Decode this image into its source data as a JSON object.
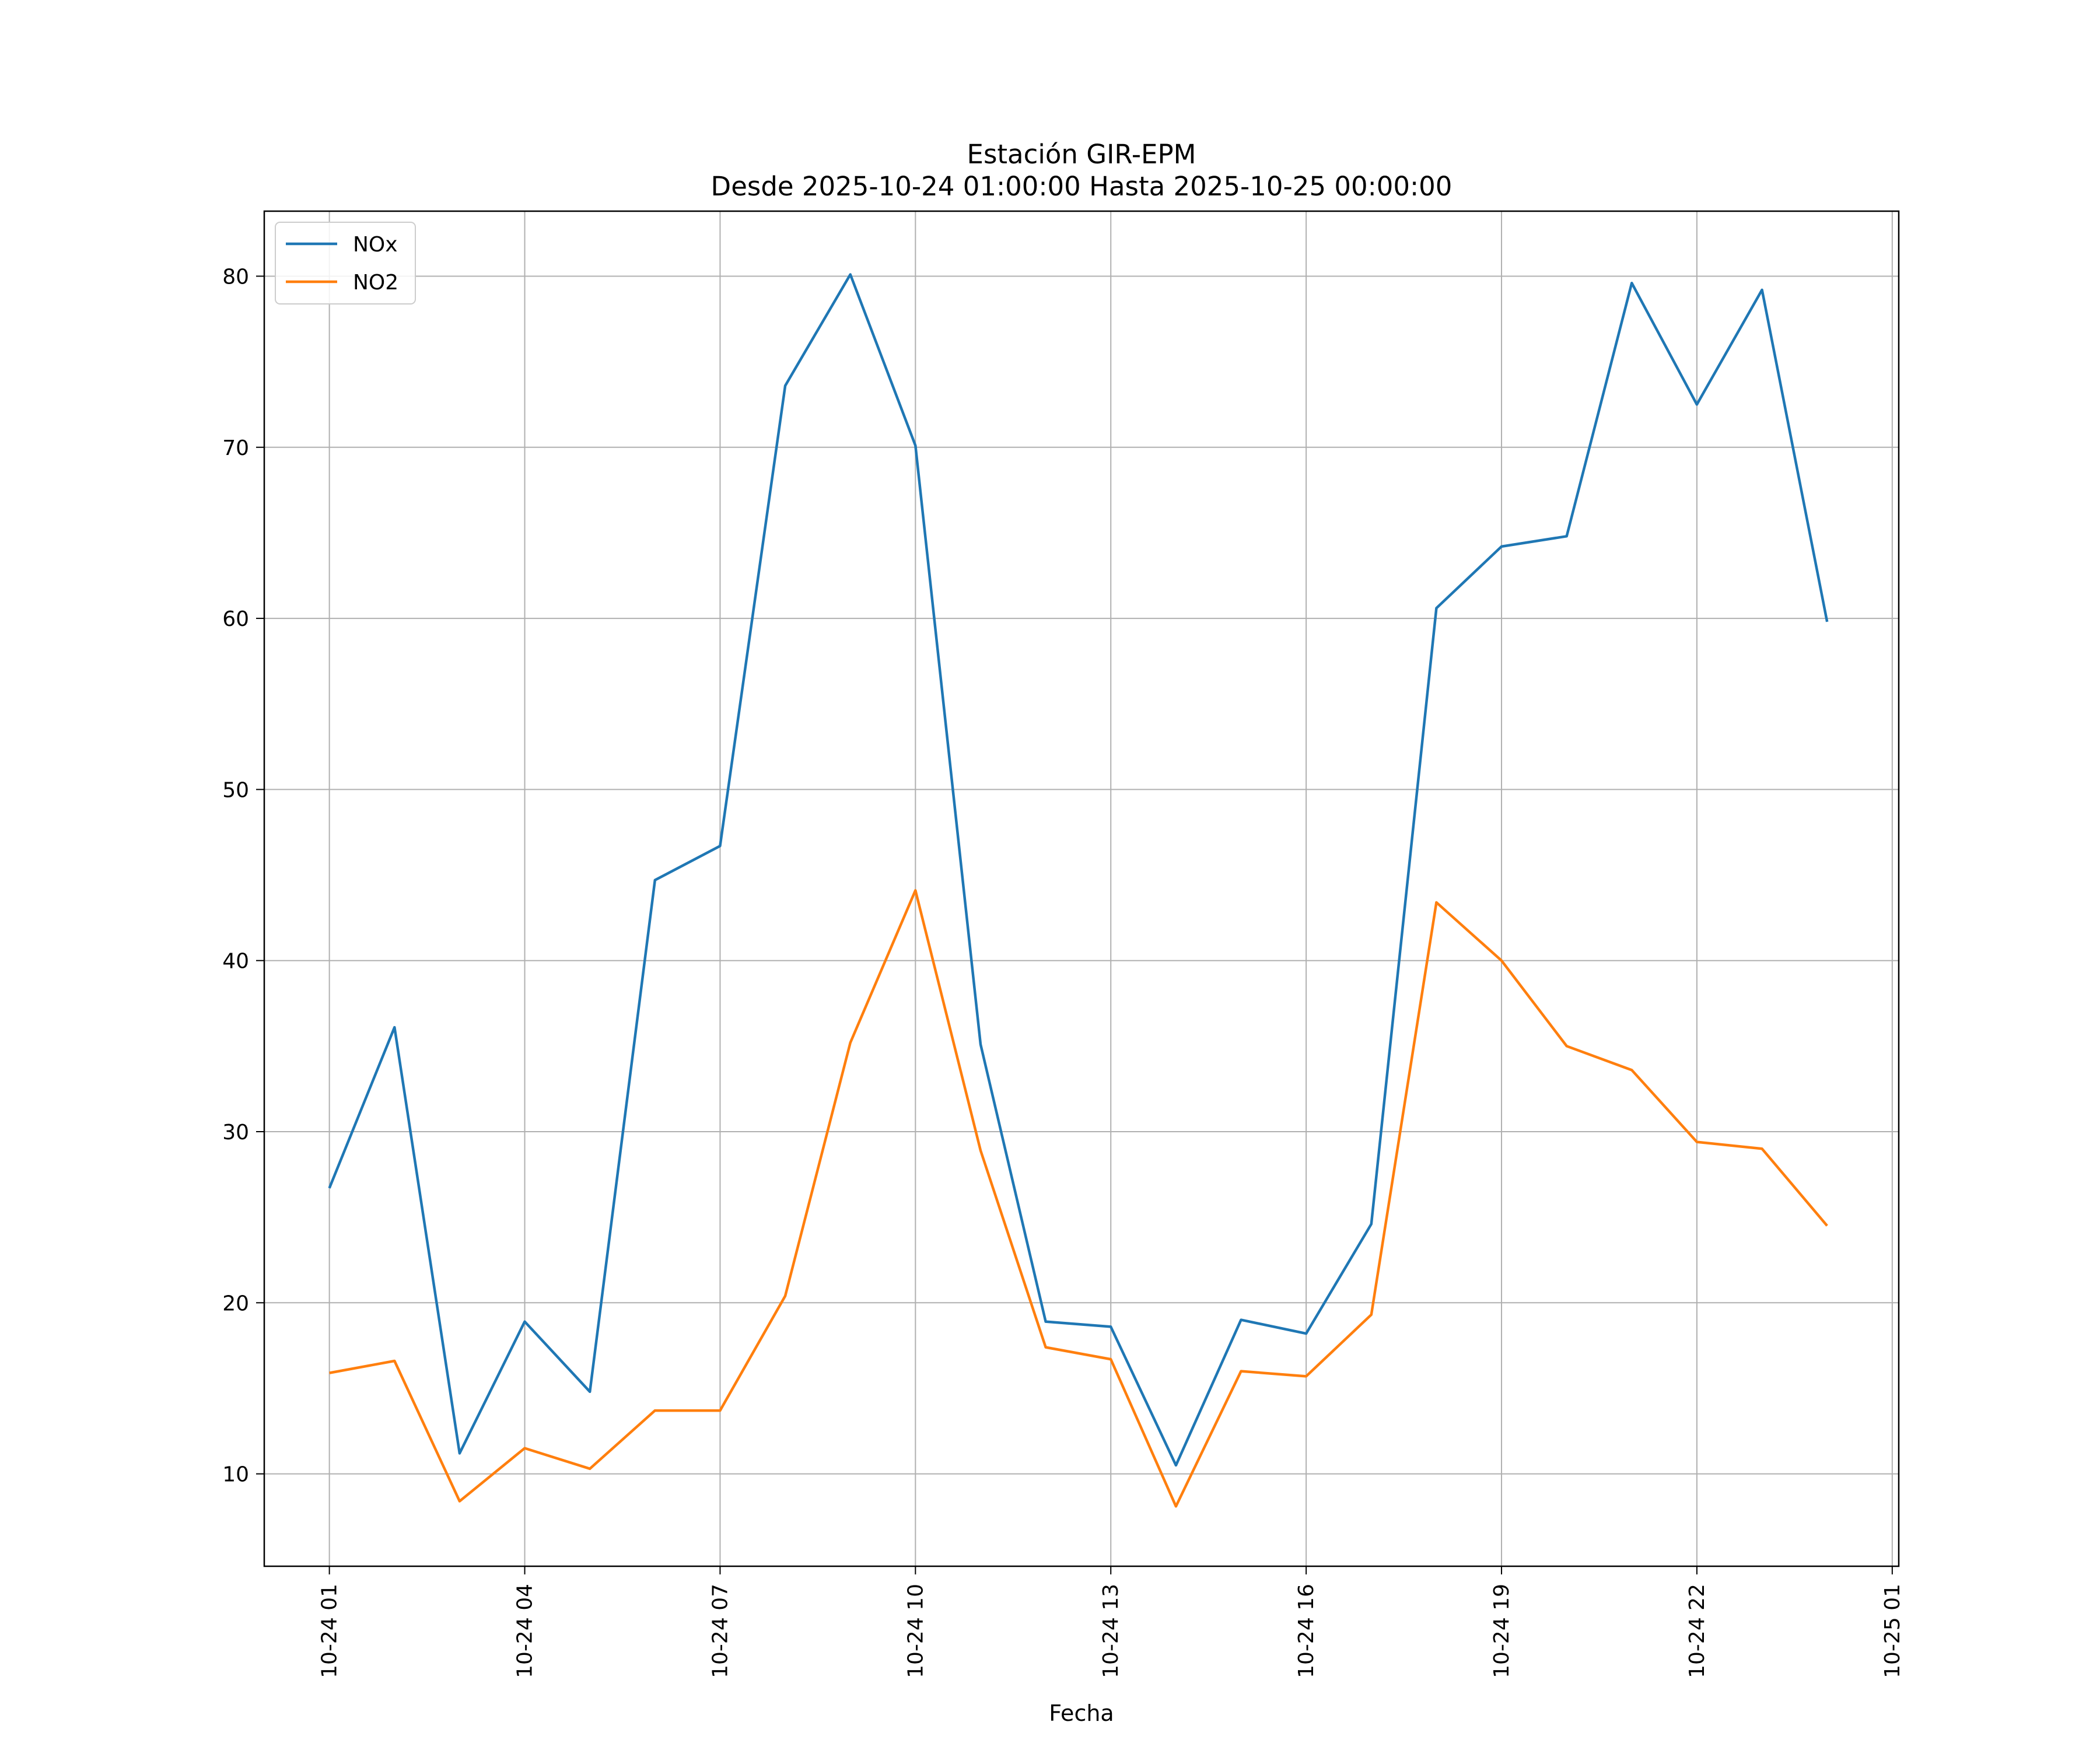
{
  "chart_data": {
    "type": "line",
    "title": "Estación GIR-EPM",
    "subtitle": "Desde 2025-10-24 01:00:00 Hasta 2025-10-25 00:00:00",
    "xlabel": "Fecha",
    "ylabel": "",
    "x": [
      "2025-10-24 01:00",
      "2025-10-24 02:00",
      "2025-10-24 03:00",
      "2025-10-24 04:00",
      "2025-10-24 05:00",
      "2025-10-24 06:00",
      "2025-10-24 07:00",
      "2025-10-24 08:00",
      "2025-10-24 09:00",
      "2025-10-24 10:00",
      "2025-10-24 11:00",
      "2025-10-24 12:00",
      "2025-10-24 13:00",
      "2025-10-24 14:00",
      "2025-10-24 15:00",
      "2025-10-24 16:00",
      "2025-10-24 17:00",
      "2025-10-24 18:00",
      "2025-10-24 19:00",
      "2025-10-24 20:00",
      "2025-10-24 21:00",
      "2025-10-24 22:00",
      "2025-10-24 23:00",
      "2025-10-25 00:00"
    ],
    "series": [
      {
        "name": "NOx",
        "color": "#1f77b4",
        "values": [
          26.7,
          36.1,
          11.2,
          18.9,
          14.8,
          44.7,
          46.7,
          73.6,
          80.1,
          70.1,
          35.1,
          18.9,
          18.6,
          10.5,
          19.0,
          18.2,
          24.6,
          60.6,
          64.2,
          64.8,
          79.6,
          72.5,
          79.2,
          59.8
        ]
      },
      {
        "name": "NO2",
        "color": "#ff7f0e",
        "values": [
          15.9,
          16.6,
          8.4,
          11.5,
          10.3,
          13.7,
          13.7,
          20.4,
          35.2,
          44.1,
          28.9,
          17.4,
          16.7,
          8.1,
          16.0,
          15.7,
          19.3,
          43.4,
          40.0,
          35.0,
          33.6,
          29.4,
          29.0,
          24.5
        ]
      }
    ],
    "x_tick_labels": [
      "10-24 01",
      "10-24 04",
      "10-24 07",
      "10-24 10",
      "10-24 13",
      "10-24 16",
      "10-24 19",
      "10-24 22",
      "10-25 01"
    ],
    "x_tick_values": [
      "2025-10-24 01:00",
      "2025-10-24 04:00",
      "2025-10-24 07:00",
      "2025-10-24 10:00",
      "2025-10-24 13:00",
      "2025-10-24 16:00",
      "2025-10-24 19:00",
      "2025-10-24 22:00",
      "2025-10-25 01:00"
    ],
    "y_ticks": [
      10,
      20,
      30,
      40,
      50,
      60,
      70,
      80
    ],
    "y_tick_labels": [
      "10",
      "20",
      "30",
      "40",
      "50",
      "60",
      "70",
      "80"
    ],
    "xlim": [
      "2025-10-24 00:00",
      "2025-10-25 01:06"
    ],
    "ylim": [
      4.6,
      83.8
    ],
    "grid": true,
    "legend": "upper-left"
  }
}
